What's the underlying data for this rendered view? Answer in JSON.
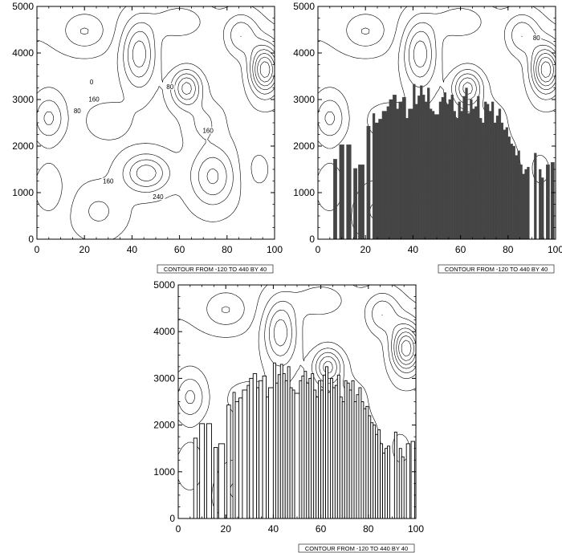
{
  "figure": {
    "info_label": "CONTOUR FROM -120 TO 440 BY 40"
  },
  "chart_data": [
    {
      "type": "contour",
      "panel": "top-left",
      "xlim": [
        0,
        100
      ],
      "ylim": [
        0,
        5000
      ],
      "x_ticks": [
        0,
        20,
        40,
        60,
        80,
        100
      ],
      "y_ticks": [
        0,
        1000,
        2000,
        3000,
        4000,
        5000
      ],
      "contour_levels": {
        "min": -120,
        "max": 440,
        "step": 40
      },
      "contour_labels": [
        {
          "text": "0",
          "x": 23,
          "y": 3380
        },
        {
          "text": "80",
          "x": 56,
          "y": 3280
        },
        {
          "text": "160",
          "x": 24,
          "y": 3010
        },
        {
          "text": "80",
          "x": 17,
          "y": 2760
        },
        {
          "text": "160",
          "x": 72,
          "y": 2340
        },
        {
          "text": "160",
          "x": 30,
          "y": 1250
        },
        {
          "text": "240",
          "x": 51,
          "y": 910
        }
      ],
      "info_label": "CONTOUR FROM -120 TO 440 BY 40"
    },
    {
      "type": "contour",
      "panel": "top-right",
      "overlay": "bar-filled",
      "xlim": [
        0,
        100
      ],
      "ylim": [
        0,
        5000
      ],
      "x_ticks": [
        0,
        20,
        40,
        60,
        80,
        100
      ],
      "y_ticks": [
        0,
        1000,
        2000,
        3000,
        4000,
        5000
      ],
      "contour_labels": [
        {
          "text": "80",
          "x": 92,
          "y": 4330
        }
      ],
      "info_label": "CONTOUR FROM -120 TO 440 BY 40"
    },
    {
      "type": "contour",
      "panel": "bottom",
      "overlay": "bar-outline",
      "xlim": [
        0,
        100
      ],
      "ylim": [
        0,
        5000
      ],
      "x_ticks": [
        0,
        20,
        40,
        60,
        80,
        100
      ],
      "y_ticks": [
        0,
        1000,
        2000,
        3000,
        4000,
        5000
      ],
      "info_label": "CONTOUR FROM -120 TO 440 BY 40"
    }
  ],
  "terrain_bars": {
    "comment_free": true,
    "bars": [
      [
        6.5,
        8,
        1720
      ],
      [
        9,
        11,
        2030
      ],
      [
        12,
        14,
        2030
      ],
      [
        15,
        16.5,
        1520
      ],
      [
        17,
        19.5,
        1600
      ],
      [
        20.5,
        22,
        2430
      ],
      [
        23,
        24,
        2700
      ],
      [
        24,
        25.5,
        2500
      ],
      [
        25.5,
        27,
        2580
      ],
      [
        27,
        29,
        2750
      ],
      [
        29,
        30,
        2850
      ],
      [
        30,
        31.5,
        3000
      ],
      [
        31.5,
        33,
        3100
      ],
      [
        33,
        34,
        2800
      ],
      [
        34,
        35.5,
        2950
      ],
      [
        35.5,
        37,
        3050
      ],
      [
        37,
        38,
        2600
      ],
      [
        38,
        40,
        2800
      ],
      [
        40,
        41,
        3330
      ],
      [
        41,
        42,
        2900
      ],
      [
        42,
        43,
        3080
      ],
      [
        43,
        44,
        3300
      ],
      [
        44,
        45,
        3100
      ],
      [
        45,
        46,
        2950
      ],
      [
        46,
        47,
        3250
      ],
      [
        47,
        48,
        2800
      ],
      [
        48,
        49,
        2750
      ],
      [
        49,
        51,
        2680
      ],
      [
        51,
        52,
        2950
      ],
      [
        52,
        53,
        3050
      ],
      [
        53,
        54,
        3150
      ],
      [
        54,
        55,
        2900
      ],
      [
        55,
        56,
        3000
      ],
      [
        56,
        57,
        3100
      ],
      [
        57,
        58,
        2750
      ],
      [
        58,
        59,
        2600
      ],
      [
        59,
        60,
        2950
      ],
      [
        60,
        61,
        2750
      ],
      [
        61,
        62,
        3070
      ],
      [
        62,
        63,
        3250
      ],
      [
        63,
        64,
        2700
      ],
      [
        64,
        65,
        3000
      ],
      [
        65,
        66,
        2800
      ],
      [
        66,
        67,
        2850
      ],
      [
        67,
        68,
        3070
      ],
      [
        68,
        69,
        2600
      ],
      [
        69,
        70,
        2500
      ],
      [
        70,
        71,
        2950
      ],
      [
        71,
        72,
        2900
      ],
      [
        72,
        73,
        2750
      ],
      [
        73,
        74,
        2950
      ],
      [
        74,
        75,
        2500
      ],
      [
        75,
        76,
        2650
      ],
      [
        76,
        77,
        2800
      ],
      [
        77,
        78,
        2500
      ],
      [
        78,
        79,
        2350
      ],
      [
        79,
        80,
        2400
      ],
      [
        80,
        81,
        2200
      ],
      [
        81,
        82,
        2050
      ],
      [
        82,
        83,
        2000
      ],
      [
        83,
        84,
        1800
      ],
      [
        84,
        85,
        1900
      ],
      [
        85,
        86,
        1600
      ],
      [
        86,
        87,
        1400
      ],
      [
        87,
        88,
        1500
      ],
      [
        88,
        89,
        1550
      ],
      [
        91,
        92,
        1850
      ],
      [
        93,
        94,
        1500
      ],
      [
        94,
        95,
        1320
      ],
      [
        96,
        97.5,
        1600
      ],
      [
        98,
        99.5,
        1650
      ]
    ]
  }
}
